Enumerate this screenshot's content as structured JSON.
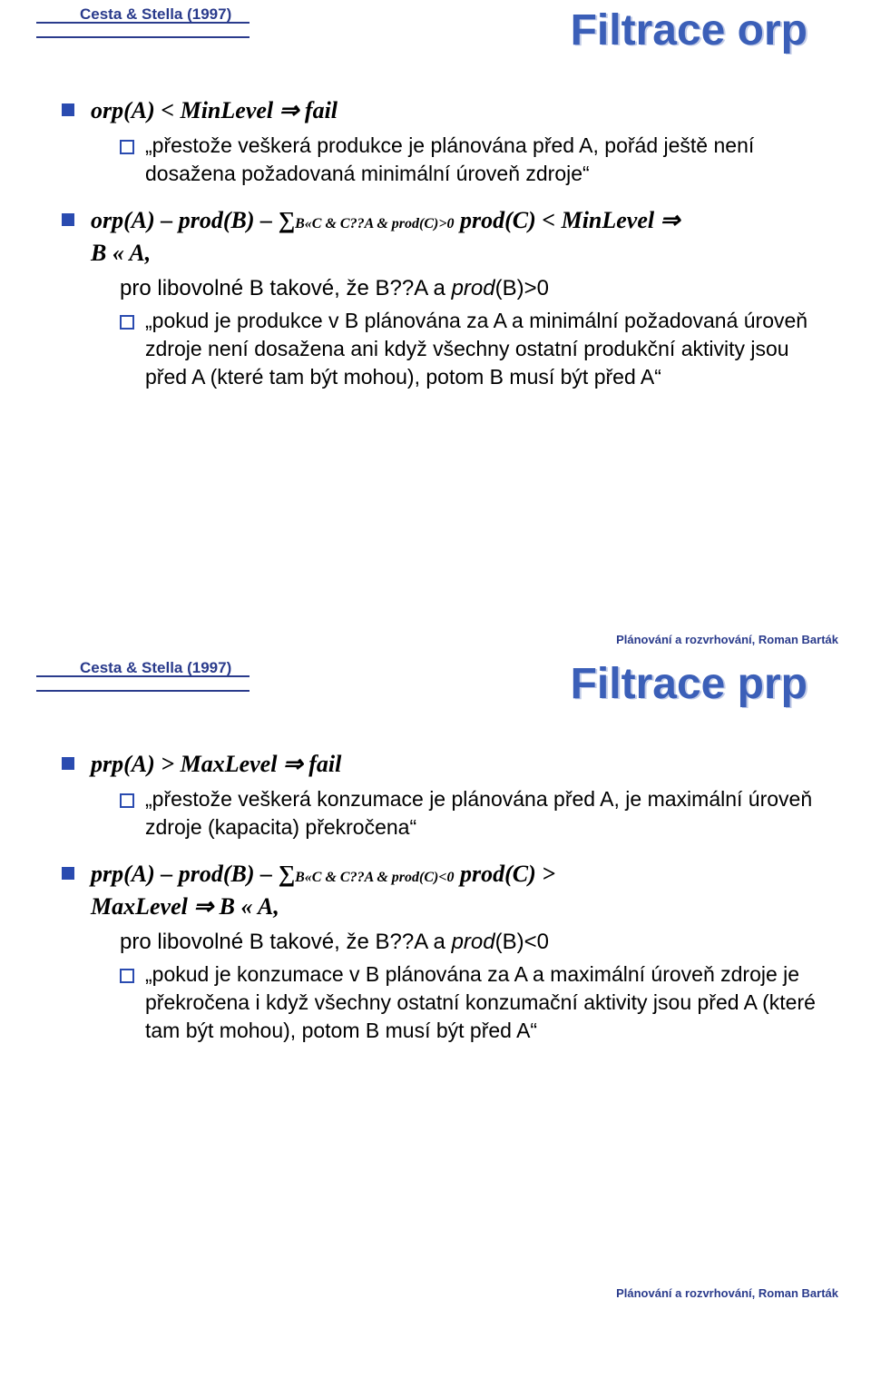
{
  "slide_top": {
    "citation": "Cesta & Stella (1997)",
    "title": "Filtrace orp",
    "rule1": "orp(A) < MinLevel ⇒ fail",
    "rule1_desc": "„přestože veškerá produkce je plánována před A, pořád ještě není dosažena požadovaná minimální úroveň zdroje“",
    "rule2_prefix": "orp(A) – prod(B) – ",
    "rule2_sigma": "∑",
    "rule2_sub": "B«C & C??A & prod(C)>0",
    "rule2_suffix": " prod(C) < MinLevel ⇒",
    "rule2_line2": "B « A,",
    "rule2_plain": "pro libovolné B takové, že B??A a ",
    "rule2_plain_it": "prod",
    "rule2_plain_suffix": "(B)>0",
    "rule2_desc": "„pokud je produkce v B plánována za A a minimální požadovaná úroveň zdroje není dosažena ani když všechny ostatní produkční aktivity jsou před A (které tam být mohou), potom B musí být před A“",
    "footer": "Plánování a rozvrhování, Roman Barták"
  },
  "slide_bottom": {
    "citation": "Cesta & Stella (1997)",
    "title": "Filtrace prp",
    "rule1": "prp(A) > MaxLevel ⇒ fail",
    "rule1_desc": "„přestože veškerá konzumace je plánována před A, je maximální úroveň zdroje (kapacita) překročena“",
    "rule2_prefix": "prp(A) – prod(B) – ",
    "rule2_sigma": "∑",
    "rule2_sub": "B«C & C??A & prod(C)<0",
    "rule2_suffix": " prod(C) >",
    "rule2_line2": "MaxLevel ⇒ B « A,",
    "rule2_plain": "pro libovolné B takové, že B??A a ",
    "rule2_plain_it": "prod",
    "rule2_plain_suffix": "(B)<0",
    "rule2_desc": "„pokud je konzumace v B plánována za A a maximální úroveň zdroje je překročena i když všechny ostatní konzumační aktivity jsou před A (které tam být mohou), potom B musí být před A“",
    "footer": "Plánování a rozvrhování, Roman Barták"
  },
  "colors": {
    "title": "#3b5fb8",
    "accent": "#2a4bb0",
    "citation": "#2a3b8c",
    "bg": "#ffffff"
  }
}
